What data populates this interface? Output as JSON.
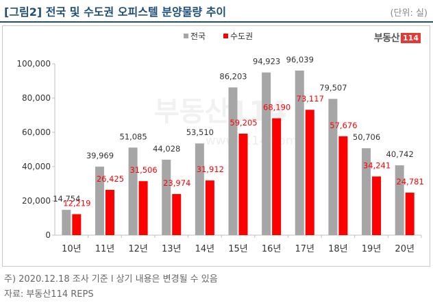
{
  "header": {
    "title": "[그림2] 전국 및 수도권 오피스텔 분양물량 추이",
    "unit": "(단위: 실)"
  },
  "logo": {
    "text": "부동산",
    "num": "114"
  },
  "watermark": {
    "text": "부동산114",
    "url": "www.r114.com"
  },
  "footer": {
    "note": "주) 2020.12.18 조사 기준 l 상기 내용은 변경될 수 있음",
    "source": "자료: 부동산114 REPS"
  },
  "colors": {
    "series1": "#a6a6a6",
    "series2": "#ff0000",
    "title": "#1f4e79"
  },
  "chart_data": {
    "type": "bar",
    "title": "",
    "xlabel": "",
    "ylabel": "",
    "ylim": [
      0,
      100000
    ],
    "yticks": [
      0,
      20000,
      40000,
      60000,
      80000,
      100000
    ],
    "ytick_labels": [
      "0",
      "20,000",
      "40,000",
      "60,000",
      "80,000",
      "100,000"
    ],
    "grid": false,
    "legend_position": "top",
    "categories": [
      "10년",
      "11년",
      "12년",
      "13년",
      "14년",
      "15년",
      "16년",
      "17년",
      "18년",
      "19년",
      "20년"
    ],
    "series": [
      {
        "name": "전국",
        "color": "#a6a6a6",
        "values": [
          14754,
          39969,
          51085,
          44028,
          53510,
          86203,
          94923,
          96039,
          79507,
          50706,
          40742
        ],
        "labels": [
          "14,754",
          "39,969",
          "51,085",
          "44,028",
          "53,510",
          "86,203",
          "94,923",
          "96,039",
          "79,507",
          "50,706",
          "40,742"
        ]
      },
      {
        "name": "수도권",
        "color": "#ff0000",
        "values": [
          12219,
          26425,
          31506,
          23974,
          31912,
          59205,
          68190,
          73117,
          57676,
          34241,
          24781
        ],
        "labels": [
          "12,219",
          "26,425",
          "31,506",
          "23,974",
          "31,912",
          "59,205",
          "68,190",
          "73,117",
          "57,676",
          "34,241",
          "24,781"
        ]
      }
    ]
  }
}
